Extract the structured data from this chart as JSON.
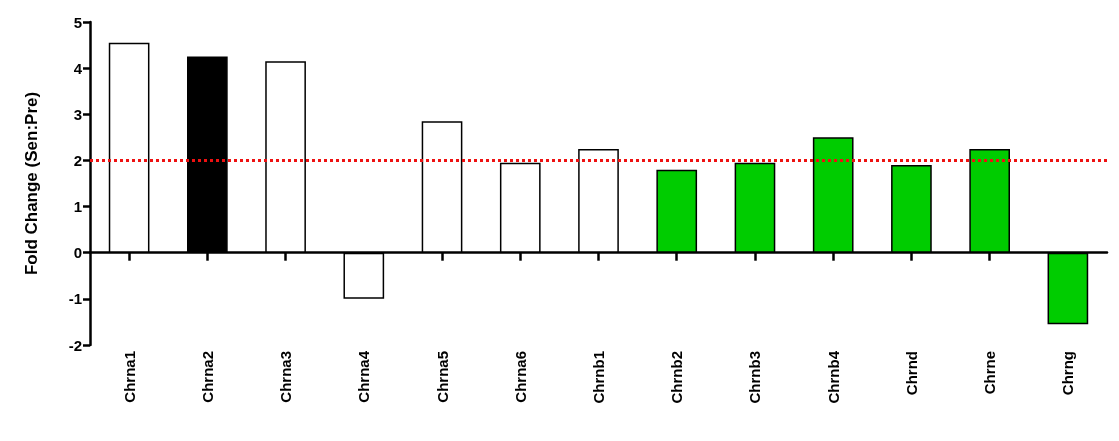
{
  "chart_data": {
    "type": "bar",
    "ylabel": "Fold Change (Sen:Pre)",
    "categories": [
      "Chrna1",
      "Chrna2",
      "Chrna3",
      "Chrna4",
      "Chrna5",
      "Chrna6",
      "Chrnb1",
      "Chrnb2",
      "Chrnb3",
      "Chrnb4",
      "Chrnd",
      "Chrne",
      "Chrng"
    ],
    "values": [
      4.55,
      4.25,
      4.15,
      -1.0,
      2.85,
      1.95,
      2.25,
      1.8,
      1.95,
      2.5,
      1.9,
      2.25,
      -1.55
    ],
    "colors": [
      "#ffffff",
      "#000000",
      "#ffffff",
      "#ffffff",
      "#ffffff",
      "#ffffff",
      "#ffffff",
      "#00cc00",
      "#00cc00",
      "#00cc00",
      "#00cc00",
      "#00cc00",
      "#00cc00"
    ],
    "ylim": [
      -2,
      5
    ],
    "yticks": [
      -2,
      -1,
      0,
      1,
      2,
      3,
      4,
      5
    ],
    "grid": false,
    "ref_lines": [
      {
        "axis": "y",
        "value": 2,
        "label": null,
        "color": "#ee1111",
        "line_style": "dotted"
      }
    ]
  }
}
